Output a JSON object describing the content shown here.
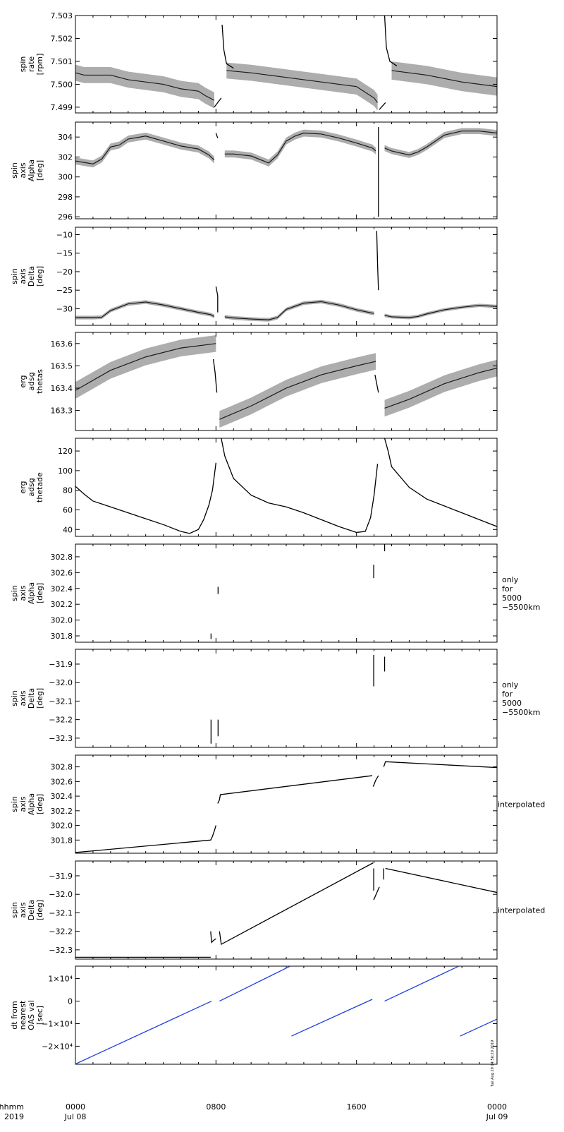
{
  "x_axis": {
    "tick_labels": [
      {
        "time": "0000",
        "date": "Jul 08",
        "hour": 0
      },
      {
        "time": "0800",
        "date": "",
        "hour": 8
      },
      {
        "time": "1600",
        "date": "",
        "hour": 16
      },
      {
        "time": "0000",
        "date": "Jul 09",
        "hour": 24
      }
    ],
    "row_label_time": "hhmm",
    "row_label_year": "2019",
    "range_hours": [
      0,
      24
    ]
  },
  "timestamp": "Tue Aug 20 14:56:20 2019",
  "chart_data": [
    {
      "type": "scatter",
      "ylabel_lines": [
        "spin",
        "rate",
        "[rpm]"
      ],
      "note_lines": [],
      "ylim": [
        7.49875,
        7.503
      ],
      "yticks": [
        7.499,
        7.5,
        7.501,
        7.502,
        7.503
      ],
      "tick_decimals": 3,
      "color": "#000000",
      "series": [
        {
          "style": "band",
          "x": [
            0,
            0.5,
            1,
            2,
            3,
            4,
            5,
            6,
            7,
            7.4,
            7.9
          ],
          "y": [
            7.5005,
            7.5004,
            7.5004,
            7.5004,
            7.5002,
            7.5001,
            7.5,
            7.4998,
            7.4997,
            7.4995,
            7.4993
          ],
          "spread": 0.0007
        },
        {
          "style": "line",
          "x": [
            7.9,
            8.3
          ],
          "y": [
            7.499,
            7.4994
          ]
        },
        {
          "style": "line",
          "x": [
            8.35,
            8.45,
            8.6,
            9.0
          ],
          "y": [
            7.5026,
            7.5015,
            7.5009,
            7.5007
          ]
        },
        {
          "style": "band",
          "x": [
            8.6,
            10,
            12,
            14,
            16,
            17.0,
            17.2
          ],
          "y": [
            7.5006,
            7.5005,
            7.5003,
            7.5001,
            7.4999,
            7.4994,
            7.4992
          ],
          "spread": 0.0007
        },
        {
          "style": "line",
          "x": [
            17.3,
            17.65
          ],
          "y": [
            7.4989,
            7.4992
          ]
        },
        {
          "style": "line",
          "x": [
            17.6,
            17.7,
            17.9,
            18.3
          ],
          "y": [
            7.503,
            7.5016,
            7.501,
            7.5008
          ]
        },
        {
          "style": "band",
          "x": [
            18.0,
            20,
            22,
            24
          ],
          "y": [
            7.5006,
            7.5004,
            7.5001,
            7.4999
          ],
          "spread": 0.0008
        }
      ]
    },
    {
      "type": "scatter",
      "ylabel_lines": [
        "spin",
        "axis",
        "Alpha",
        "[deg]"
      ],
      "note_lines": [],
      "ylim": [
        295.8,
        305.5
      ],
      "yticks": [
        296,
        298,
        300,
        302,
        304
      ],
      "tick_decimals": 0,
      "color": "#000000",
      "series": [
        {
          "style": "band",
          "x": [
            0,
            1,
            1.5,
            2,
            2.5,
            3,
            4,
            5,
            6,
            7,
            7.6,
            7.9
          ],
          "y": [
            301.6,
            301.3,
            301.8,
            303.0,
            303.2,
            303.8,
            304.1,
            303.6,
            303.1,
            302.8,
            302.2,
            301.7
          ],
          "spread": 0.7
        },
        {
          "style": "line",
          "x": [
            8.0,
            8.1
          ],
          "y": [
            304.4,
            303.9
          ]
        },
        {
          "style": "band",
          "x": [
            8.5,
            9,
            10,
            11,
            11.5,
            12,
            12.5,
            13,
            14,
            15,
            16,
            16.9,
            17.1
          ],
          "y": [
            302.3,
            302.3,
            302.1,
            301.4,
            302.2,
            303.6,
            304.1,
            304.4,
            304.3,
            303.9,
            303.4,
            302.9,
            302.6
          ],
          "spread": 0.7
        },
        {
          "style": "line",
          "x": [
            17.25,
            17.25
          ],
          "y": [
            296.0,
            305.0
          ]
        },
        {
          "style": "band",
          "x": [
            17.6,
            18,
            19,
            19.5,
            20,
            21,
            22,
            23,
            24
          ],
          "y": [
            302.9,
            302.6,
            302.2,
            302.5,
            303.0,
            304.2,
            304.6,
            304.6,
            304.4
          ],
          "spread": 0.6
        }
      ]
    },
    {
      "type": "scatter",
      "ylabel_lines": [
        "spin",
        "axis",
        "Delta",
        "[deg]"
      ],
      "note_lines": [],
      "ylim": [
        -34.5,
        -8.0
      ],
      "yticks": [
        -30,
        -25,
        -20,
        -15,
        -10
      ],
      "tick_decimals": 0,
      "color": "#000000",
      "series": [
        {
          "style": "band",
          "x": [
            0,
            1,
            1.5,
            2,
            3,
            4,
            5,
            6,
            7,
            7.7,
            7.9
          ],
          "y": [
            -32.4,
            -32.4,
            -32.3,
            -30.5,
            -28.7,
            -28.2,
            -29.0,
            -30.0,
            -31.0,
            -31.6,
            -32.1
          ],
          "spread": 1.0
        },
        {
          "style": "line",
          "x": [
            8.0,
            8.1,
            8.1
          ],
          "y": [
            -24.0,
            -26.5,
            -31.0
          ]
        },
        {
          "style": "band",
          "x": [
            8.5,
            9,
            10,
            11,
            11.5,
            12,
            13,
            14,
            15,
            16,
            17
          ],
          "y": [
            -32.2,
            -32.5,
            -32.8,
            -33.0,
            -32.4,
            -30.2,
            -28.5,
            -28.1,
            -29.0,
            -30.3,
            -31.3
          ],
          "spread": 1.0
        },
        {
          "style": "line",
          "x": [
            17.15,
            17.2,
            17.25
          ],
          "y": [
            -9.0,
            -18.0,
            -25.0
          ]
        },
        {
          "style": "band",
          "x": [
            17.6,
            18,
            19,
            19.5,
            20,
            21,
            22,
            23,
            24
          ],
          "y": [
            -31.8,
            -32.2,
            -32.4,
            -32.1,
            -31.4,
            -30.3,
            -29.6,
            -29.1,
            -29.4
          ],
          "spread": 0.9
        }
      ]
    },
    {
      "type": "scatter",
      "ylabel_lines": [
        "erg",
        "adsg",
        "thetas"
      ],
      "note_lines": [],
      "ylim": [
        163.21,
        163.65
      ],
      "yticks": [
        163.3,
        163.4,
        163.5,
        163.6
      ],
      "tick_decimals": 1,
      "color": "#000000",
      "series": [
        {
          "style": "band",
          "x": [
            0,
            2,
            4,
            6,
            8.0
          ],
          "y": [
            163.39,
            163.48,
            163.54,
            163.58,
            163.6
          ],
          "spread": 0.075
        },
        {
          "style": "line",
          "x": [
            7.85,
            7.95,
            8.05
          ],
          "y": [
            163.53,
            163.47,
            163.38
          ]
        },
        {
          "style": "band",
          "x": [
            8.2,
            10,
            12,
            14,
            16,
            17.1
          ],
          "y": [
            163.26,
            163.32,
            163.4,
            163.46,
            163.5,
            163.52
          ],
          "spread": 0.075
        },
        {
          "style": "line",
          "x": [
            17.05,
            17.15,
            17.25
          ],
          "y": [
            163.46,
            163.42,
            163.38
          ]
        },
        {
          "style": "band",
          "x": [
            17.6,
            19,
            21,
            23,
            24
          ],
          "y": [
            163.31,
            163.35,
            163.42,
            163.47,
            163.49
          ],
          "spread": 0.075
        }
      ]
    },
    {
      "type": "line",
      "ylabel_lines": [
        "erg",
        "adsg",
        "thetade"
      ],
      "note_lines": [],
      "ylim": [
        33,
        133
      ],
      "yticks": [
        40,
        60,
        80,
        100,
        120
      ],
      "tick_decimals": 0,
      "color": "#000000",
      "series": [
        {
          "style": "line",
          "x": [
            0,
            0.5,
            1,
            2,
            3,
            4,
            5,
            6,
            6.5,
            7,
            7.3,
            7.6,
            7.8,
            8.0
          ],
          "y": [
            84,
            76,
            69,
            63,
            57,
            51,
            45,
            38,
            36,
            40,
            50,
            65,
            80,
            108
          ]
        },
        {
          "style": "line",
          "x": [
            8.3,
            8.5,
            9,
            10,
            11,
            12,
            13,
            14,
            15,
            16,
            16.5,
            16.8,
            17.0,
            17.2
          ],
          "y": [
            133,
            115,
            92,
            75,
            67,
            63,
            57,
            50,
            43,
            37,
            38,
            52,
            75,
            107
          ]
        },
        {
          "style": "line",
          "x": [
            17.6,
            17.8,
            18,
            19,
            20,
            21,
            22,
            23,
            24
          ],
          "y": [
            133,
            120,
            104,
            83,
            71,
            64,
            57,
            50,
            43
          ]
        }
      ]
    },
    {
      "type": "scatter",
      "ylabel_lines": [
        "spin",
        "axis",
        "Alpha",
        "[deg]"
      ],
      "note_lines": [
        "only",
        "for",
        "5000",
        "−5500km"
      ],
      "ylim": [
        301.72,
        302.96
      ],
      "yticks": [
        301.8,
        302.0,
        302.2,
        302.4,
        302.6,
        302.8
      ],
      "tick_decimals": 1,
      "color": "#000000",
      "series": [
        {
          "style": "line",
          "x": [
            7.72,
            7.72
          ],
          "y": [
            301.76,
            301.83
          ]
        },
        {
          "style": "line",
          "x": [
            8.12,
            8.12
          ],
          "y": [
            302.33,
            302.42
          ]
        },
        {
          "style": "line",
          "x": [
            16.98,
            16.98
          ],
          "y": [
            302.53,
            302.7
          ]
        },
        {
          "style": "line",
          "x": [
            17.6,
            17.6
          ],
          "y": [
            302.87,
            302.96
          ]
        }
      ]
    },
    {
      "type": "scatter",
      "ylabel_lines": [
        "spin",
        "axis",
        "Delta",
        "[deg]"
      ],
      "note_lines": [
        "only",
        "for",
        "5000",
        "−5500km"
      ],
      "ylim": [
        -32.35,
        -31.82
      ],
      "yticks": [
        -32.3,
        -32.2,
        -32.1,
        -32.0,
        -31.9
      ],
      "tick_decimals": 1,
      "color": "#000000",
      "series": [
        {
          "style": "line",
          "x": [
            7.72,
            7.72
          ],
          "y": [
            -32.33,
            -32.2
          ]
        },
        {
          "style": "line",
          "x": [
            8.12,
            8.12
          ],
          "y": [
            -32.29,
            -32.2
          ]
        },
        {
          "style": "line",
          "x": [
            16.98,
            16.98
          ],
          "y": [
            -32.02,
            -31.85
          ]
        },
        {
          "style": "line",
          "x": [
            17.6,
            17.6
          ],
          "y": [
            -31.94,
            -31.86
          ]
        }
      ]
    },
    {
      "type": "line",
      "ylabel_lines": [
        "spin",
        "axis",
        "Alpha",
        "[deg]"
      ],
      "note_lines": [
        "interpolated"
      ],
      "ylim": [
        301.62,
        302.96
      ],
      "yticks": [
        301.8,
        302.0,
        302.2,
        302.4,
        302.6,
        302.8
      ],
      "tick_decimals": 1,
      "color": "#000000",
      "series": [
        {
          "style": "line",
          "x": [
            0,
            7.7,
            7.8,
            7.9,
            8.0
          ],
          "y": [
            301.63,
            301.8,
            301.85,
            301.92,
            302.0
          ]
        },
        {
          "style": "line",
          "x": [
            8.1,
            8.2,
            8.25,
            16.9
          ],
          "y": [
            302.3,
            302.35,
            302.42,
            302.68
          ]
        },
        {
          "style": "line",
          "x": [
            16.95,
            17.1,
            17.25
          ],
          "y": [
            302.53,
            302.62,
            302.68
          ]
        },
        {
          "style": "line",
          "x": [
            17.55,
            17.65,
            24
          ],
          "y": [
            302.8,
            302.87,
            302.79
          ]
        }
      ]
    },
    {
      "type": "line",
      "ylabel_lines": [
        "spin",
        "axis",
        "Delta",
        "[deg]"
      ],
      "note_lines": [
        "interpolated"
      ],
      "ylim": [
        -32.35,
        -31.82
      ],
      "yticks": [
        -32.3,
        -32.2,
        -32.1,
        -32.0,
        -31.9
      ],
      "tick_decimals": 1,
      "color": "#000000",
      "series": [
        {
          "style": "line",
          "x": [
            0,
            7.7
          ],
          "y": [
            -32.34,
            -32.34
          ]
        },
        {
          "style": "line",
          "x": [
            7.7,
            7.75,
            7.85,
            8.0
          ],
          "y": [
            -32.2,
            -32.26,
            -32.25,
            -32.24
          ]
        },
        {
          "style": "line",
          "x": [
            8.2,
            8.3,
            16.95
          ],
          "y": [
            -32.2,
            -32.27,
            -31.83
          ]
        },
        {
          "style": "line",
          "x": [
            16.98,
            16.98
          ],
          "y": [
            -31.86,
            -31.98
          ]
        },
        {
          "style": "line",
          "x": [
            16.98,
            17.3
          ],
          "y": [
            -32.03,
            -31.96
          ]
        },
        {
          "style": "line",
          "x": [
            17.55,
            17.55
          ],
          "y": [
            -31.86,
            -31.92
          ]
        },
        {
          "style": "line",
          "x": [
            17.65,
            24
          ],
          "y": [
            -31.86,
            -31.99
          ]
        }
      ]
    },
    {
      "type": "line",
      "ylabel_lines": [
        "dt from",
        "nearest",
        "OAS val",
        "[sec]"
      ],
      "note_lines": [],
      "ylim": [
        -28000,
        15500
      ],
      "yticks": [
        -20000,
        -10000,
        0,
        10000
      ],
      "tick_labels": [
        "−2×10⁴",
        "−1×10⁴",
        "0",
        "1×10⁴"
      ],
      "color": "#1f3fe0",
      "series": [
        {
          "style": "line",
          "x": [
            0,
            7.75
          ],
          "y": [
            -27900,
            0
          ]
        },
        {
          "style": "line",
          "x": [
            8.2,
            12.2
          ],
          "y": [
            0,
            15400
          ]
        },
        {
          "style": "line",
          "x": [
            12.3,
            16.9
          ],
          "y": [
            -15500,
            800
          ]
        },
        {
          "style": "line",
          "x": [
            17.6,
            21.8
          ],
          "y": [
            0,
            15400
          ]
        },
        {
          "style": "line",
          "x": [
            21.9,
            24
          ],
          "y": [
            -15500,
            -8000
          ]
        }
      ]
    }
  ]
}
